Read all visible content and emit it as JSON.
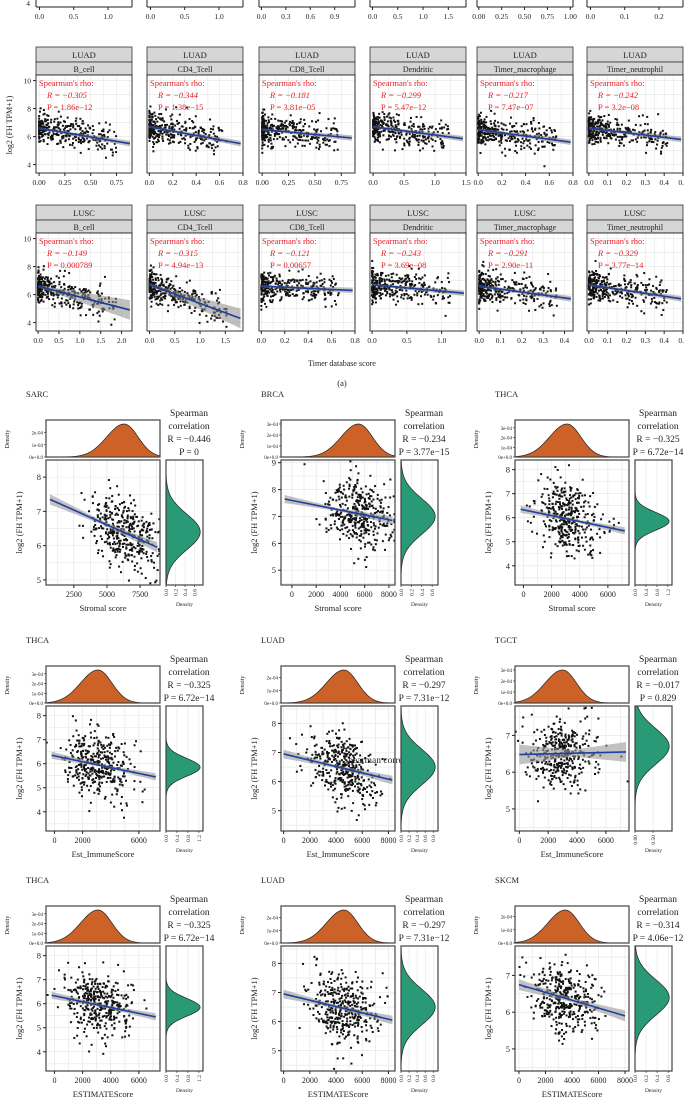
{
  "chart_data": [
    {
      "type": "scatter",
      "panel_label": "(a)",
      "ylabel": "log2 (FH TPM+1)",
      "xlabel": "Timer database score",
      "stat_title": "Spearman's rho:",
      "ylim": [
        3.4,
        10.4
      ],
      "yticks": [
        "4",
        "6",
        "8",
        "10"
      ],
      "grid": true,
      "partial_row": {
        "yticks": [
          "4"
        ],
        "panels": [
          {
            "xlim": [
              -0.05,
              1.35
            ],
            "xticks": [
              "0.0",
              "0.5",
              "1.0"
            ]
          },
          {
            "xlim": [
              -0.05,
              1.35
            ],
            "xticks": [
              "0.0",
              "0.5",
              "1.0"
            ]
          },
          {
            "xlim": [
              -0.03,
              1.15
            ],
            "xticks": [
              "0.0",
              "0.3",
              "0.6",
              "0.9"
            ]
          },
          {
            "xlim": [
              -0.05,
              1.85
            ],
            "xticks": [
              "0.0",
              "0.5",
              "1.0",
              "1.5"
            ]
          },
          {
            "xlim": [
              -0.02,
              1.03
            ],
            "xticks": [
              "0.00",
              "0.25",
              "0.50",
              "0.75",
              "1.00"
            ]
          },
          {
            "xlim": [
              -0.01,
              0.27
            ],
            "xticks": [
              "0.0",
              "0.1",
              "0.2"
            ]
          }
        ]
      },
      "rows": [
        {
          "cancer": "LUAD",
          "panels": [
            {
              "cell": "B_cell",
              "r": "R = −0.305",
              "p": "P = 1.86e−12",
              "xlim": [
                -0.03,
                0.9
              ],
              "xticks": [
                "0.00",
                "0.25",
                "0.50",
                "0.75"
              ],
              "fit": [
                [
                  0,
                  6.6
                ],
                [
                  0.88,
                  5.5
                ]
              ]
            },
            {
              "cell": "CD4_Tcell",
              "r": "R = −0.344",
              "p": "P = 1.38e−15",
              "xlim": [
                -0.02,
                0.8
              ],
              "xticks": [
                "0.0",
                "0.2",
                "0.4",
                "0.6",
                "0.8"
              ],
              "fit": [
                [
                  0,
                  6.7
                ],
                [
                  0.78,
                  5.5
                ]
              ]
            },
            {
              "cell": "CD8_Tcell",
              "r": "R = −0.181",
              "p": "P = 3.81e−05",
              "xlim": [
                -0.03,
                0.88
              ],
              "xticks": [
                "0.00",
                "0.25",
                "0.50",
                "0.75"
              ],
              "fit": [
                [
                  0,
                  6.5
                ],
                [
                  0.85,
                  5.9
                ]
              ]
            },
            {
              "cell": "Dendritic",
              "r": "R = −0.299",
              "p": "P = 5.47e−12",
              "xlim": [
                -0.05,
                1.5
              ],
              "xticks": [
                "0.0",
                "0.5",
                "1.0",
                "1.5"
              ],
              "fit": [
                [
                  0,
                  6.7
                ],
                [
                  1.45,
                  5.85
                ]
              ]
            },
            {
              "cell": "Timer_macrophage",
              "r": "R = −0.217",
              "p": "P = 7.47e−07",
              "xlim": [
                -0.01,
                0.8
              ],
              "xticks": [
                "0.0",
                "0.2",
                "0.4",
                "0.6",
                "0.8"
              ],
              "fit": [
                [
                  0,
                  6.5
                ],
                [
                  0.78,
                  5.6
                ]
              ]
            },
            {
              "cell": "Timer_neutrophil",
              "r": "R = −0.242",
              "p": "P = 3.2e−08",
              "xlim": [
                -0.01,
                0.5
              ],
              "xticks": [
                "0.0",
                "0.1",
                "0.2",
                "0.3",
                "0.4",
                "0.5"
              ],
              "fit": [
                [
                  0,
                  6.6
                ],
                [
                  0.49,
                  5.8
                ]
              ]
            }
          ]
        },
        {
          "cancer": "LUSC",
          "panels": [
            {
              "cell": "B_cell",
              "r": "R = −0.149",
              "p": "P = 0.000789",
              "xlim": [
                -0.05,
                2.25
              ],
              "xticks": [
                "0.0",
                "0.5",
                "1.0",
                "1.5",
                "2.0"
              ],
              "fit": [
                [
                  0,
                  6.6
                ],
                [
                  2.2,
                  4.9
                ]
              ]
            },
            {
              "cell": "CD4_Tcell",
              "r": "R = −0.315",
              "p": "P = 4.94e−13",
              "xlim": [
                -0.05,
                1.85
              ],
              "xticks": [
                "0.0",
                "0.5",
                "1.0",
                "1.5"
              ],
              "fit": [
                [
                  0,
                  6.7
                ],
                [
                  1.8,
                  4.3
                ]
              ]
            },
            {
              "cell": "CD8_Tcell",
              "r": "R = −0.121",
              "p": "P = 0.00657",
              "xlim": [
                -0.02,
                0.8
              ],
              "xticks": [
                "0.0",
                "0.2",
                "0.4",
                "0.6",
                "0.8"
              ],
              "fit": [
                [
                  0,
                  6.6
                ],
                [
                  0.78,
                  6.3
                ]
              ]
            },
            {
              "cell": "Dendritic",
              "r": "R = −0.243",
              "p": "P = 3.69e−08",
              "xlim": [
                -0.03,
                1.35
              ],
              "xticks": [
                "0.0",
                "0.5",
                "1.0"
              ],
              "fit": [
                [
                  0,
                  6.7
                ],
                [
                  1.32,
                  6.1
                ]
              ]
            },
            {
              "cell": "Timer_macrophage",
              "r": "R = −0.291",
              "p": "P = 2.90e−11",
              "xlim": [
                -0.01,
                0.44
              ],
              "xticks": [
                "0.0",
                "0.1",
                "0.2",
                "0.3",
                "0.4"
              ],
              "fit": [
                [
                  0,
                  6.6
                ],
                [
                  0.43,
                  5.7
                ]
              ]
            },
            {
              "cell": "Timer_neutrophil",
              "r": "R = −0.329",
              "p": "P = 3.77e−14",
              "xlim": [
                -0.01,
                0.5
              ],
              "xticks": [
                "0.0",
                "0.1",
                "0.2",
                "0.3",
                "0.4",
                "0.5"
              ],
              "fit": [
                [
                  0,
                  6.7
                ],
                [
                  0.49,
                  5.7
                ]
              ]
            }
          ]
        }
      ]
    },
    {
      "type": "scatter",
      "ylabel": "log2 (FH TPM+1)",
      "density_label": "Density",
      "stat_title": [
        "Spearman",
        "correlation"
      ],
      "colors": {
        "x_density": "#cc6228",
        "y_density": "#2a9a76",
        "fit": "#2040a0",
        "points": "#111111"
      },
      "panels": [
        {
          "cancer": "SARC",
          "xlabel": "Stromal score",
          "r": "R = −0.446",
          "p": "P = 0",
          "xlim": [
            400,
            9000
          ],
          "ylim": [
            4.85,
            8.5
          ],
          "xticks": [
            "2500",
            "5000",
            "7500"
          ],
          "yticks": [
            "5",
            "6",
            "7",
            "8"
          ],
          "fit": [
            [
              700,
              7.35
            ],
            [
              8800,
              5.95
            ]
          ],
          "x_peak": 6300,
          "y_peak": 6.4,
          "density_ticks": [
            "0e+0.0",
            "1e-04",
            "2e-04"
          ],
          "density_max": 0.00027,
          "right_ticks": [
            "0.0",
            "0.2",
            "0.4",
            "0.6"
          ],
          "right_max": 0.72
        },
        {
          "cancer": "BRCA",
          "xlabel": "Stromal score",
          "r": "R = −0.234",
          "p": "P = 3.77e−15",
          "xlim": [
            -900,
            8500
          ],
          "ylim": [
            4.45,
            9.1
          ],
          "xticks": [
            "0",
            "2000",
            "4000",
            "6000",
            "8000"
          ],
          "yticks": [
            "5",
            "6",
            "7",
            "8",
            "9"
          ],
          "fit": [
            [
              -600,
              7.65
            ],
            [
              8300,
              6.85
            ]
          ],
          "x_peak": 5500,
          "y_peak": 7.0,
          "density_ticks": [
            "0e+0.0",
            "1e-04",
            "2e-04",
            "3e-04"
          ],
          "density_max": 0.0003,
          "right_ticks": [
            "0.0",
            "0.2",
            "0.4",
            "0.6"
          ],
          "right_max": 0.66
        },
        {
          "cancer": "THCA",
          "xlabel": "Stromal score",
          "r": "R = −0.325",
          "p": "P = 6.72e−14",
          "xlim": [
            -600,
            7500
          ],
          "ylim": [
            3.2,
            8.4
          ],
          "xticks": [
            "0",
            "2000",
            "4000",
            "6000"
          ],
          "yticks": [
            "4",
            "5",
            "6",
            "7",
            "8"
          ],
          "fit": [
            [
              -200,
              6.35
            ],
            [
              7200,
              5.45
            ]
          ],
          "x_peak": 3100,
          "y_peak": 5.85,
          "density_ticks": [
            "0e+0.0",
            "1e-04",
            "2e-04",
            "3e-04"
          ],
          "density_max": 0.00034,
          "right_ticks": [
            "0.0",
            "0.4",
            "0.8",
            "1.2"
          ],
          "right_max": 1.25
        },
        {
          "cancer": "THCA",
          "xlabel": "Est_ImmuneScore",
          "r": "R = −0.325",
          "p": "P = 6.72e−14",
          "xlim": [
            -600,
            7500
          ],
          "ylim": [
            3.2,
            8.4
          ],
          "xticks": [
            "0",
            "2000",
            "6000"
          ],
          "yticks": [
            "4",
            "5",
            "6",
            "7",
            "8"
          ],
          "fit": [
            [
              -200,
              6.35
            ],
            [
              7200,
              5.45
            ]
          ],
          "x_peak": 3100,
          "y_peak": 5.85,
          "density_ticks": [
            "0e+0.0",
            "1e-04",
            "2e-04",
            "3e-04"
          ],
          "density_max": 0.00034,
          "right_ticks": [
            "0.0",
            "0.4",
            "0.8",
            "1.2"
          ],
          "right_max": 1.25
        },
        {
          "cancer": "LUAD",
          "xlabel": "Est_ImmuneScore",
          "r": "R = −0.297",
          "p": "P = 7.31e−12",
          "xlim": [
            -200,
            8500
          ],
          "ylim": [
            4.3,
            8.6
          ],
          "xticks": [
            "0",
            "2000",
            "4000",
            "6000",
            "8000"
          ],
          "yticks": [
            "5",
            "6",
            "7",
            "8"
          ],
          "fit": [
            [
              0,
              6.95
            ],
            [
              8300,
              6.05
            ]
          ],
          "x_peak": 4600,
          "y_peak": 6.5,
          "density_ticks": [
            "0e+0.0",
            "1e-04",
            "2e-04"
          ],
          "density_max": 0.00026,
          "right_ticks": [
            "0.0",
            "0.2",
            "0.4",
            "0.6",
            "0.8"
          ],
          "right_max": 0.85,
          "overlay_text": "Spearman correlation"
        },
        {
          "cancer": "TGCT",
          "xlabel": "Est_ImmuneScore",
          "r": "R = −0.017",
          "p": "P = 0.829",
          "xlim": [
            -300,
            7600
          ],
          "ylim": [
            4.4,
            7.8
          ],
          "xticks": [
            "0",
            "2000",
            "4000",
            "6000"
          ],
          "yticks": [
            "5",
            "6",
            "7"
          ],
          "fit": [
            [
              0,
              6.48
            ],
            [
              7400,
              6.55
            ]
          ],
          "x_peak": 3000,
          "y_peak": 6.7,
          "density_ticks": [
            "0e+0.0",
            "1e-04",
            "2e-04",
            "3e-04"
          ],
          "density_max": 0.0003,
          "right_ticks": [
            "0.00",
            "0.50"
          ],
          "right_max": 0.95
        },
        {
          "cancer": "THCA",
          "xlabel": "ESTIMATEScore",
          "r": "R = −0.325",
          "p": "P = 6.72e−14",
          "xlim": [
            -600,
            7500
          ],
          "ylim": [
            3.2,
            8.4
          ],
          "xticks": [
            "0",
            "2000",
            "4000",
            "6000"
          ],
          "yticks": [
            "4",
            "5",
            "6",
            "7",
            "8"
          ],
          "fit": [
            [
              -200,
              6.35
            ],
            [
              7200,
              5.45
            ]
          ],
          "x_peak": 3100,
          "y_peak": 5.85,
          "density_ticks": [
            "0e+0.0",
            "1e-04",
            "2e-04",
            "3e-04"
          ],
          "density_max": 0.00034,
          "right_ticks": [
            "0.0",
            "0.4",
            "0.8",
            "1.2"
          ],
          "right_max": 1.25
        },
        {
          "cancer": "LUAD",
          "xlabel": "ESTIMATEScore",
          "r": "R = −0.297",
          "p": "P = 7.31e−12",
          "xlim": [
            -200,
            8500
          ],
          "ylim": [
            4.3,
            8.6
          ],
          "xticks": [
            "0",
            "2000",
            "4000",
            "6000",
            "8000"
          ],
          "yticks": [
            "5",
            "6",
            "7",
            "8"
          ],
          "fit": [
            [
              0,
              6.95
            ],
            [
              8300,
              6.05
            ]
          ],
          "x_peak": 4600,
          "y_peak": 6.5,
          "density_ticks": [
            "0e+0.0",
            "1e-04",
            "2e-04"
          ],
          "density_max": 0.00026,
          "right_ticks": [
            "0.0",
            "0.2",
            "0.4",
            "0.6",
            "0.8"
          ],
          "right_max": 0.85
        },
        {
          "cancer": "SKCM",
          "xlabel": "ESTIMATEScore",
          "r": "R = −0.314",
          "p": "P = 4.06e−12",
          "xlim": [
            -300,
            8300
          ],
          "ylim": [
            4.4,
            7.8
          ],
          "xticks": [
            "0",
            "2000",
            "4000",
            "6000",
            "8000"
          ],
          "yticks": [
            "5",
            "6",
            "7"
          ],
          "fit": [
            [
              0,
              6.75
            ],
            [
              8000,
              5.9
            ]
          ],
          "x_peak": 3500,
          "y_peak": 6.4,
          "density_ticks": [
            "0e+0.0",
            "1e-04",
            "2e-04"
          ],
          "density_max": 0.00025,
          "right_ticks": [
            "0.0",
            "0.2",
            "0.4",
            "0.6"
          ],
          "right_max": 0.62
        }
      ]
    }
  ]
}
